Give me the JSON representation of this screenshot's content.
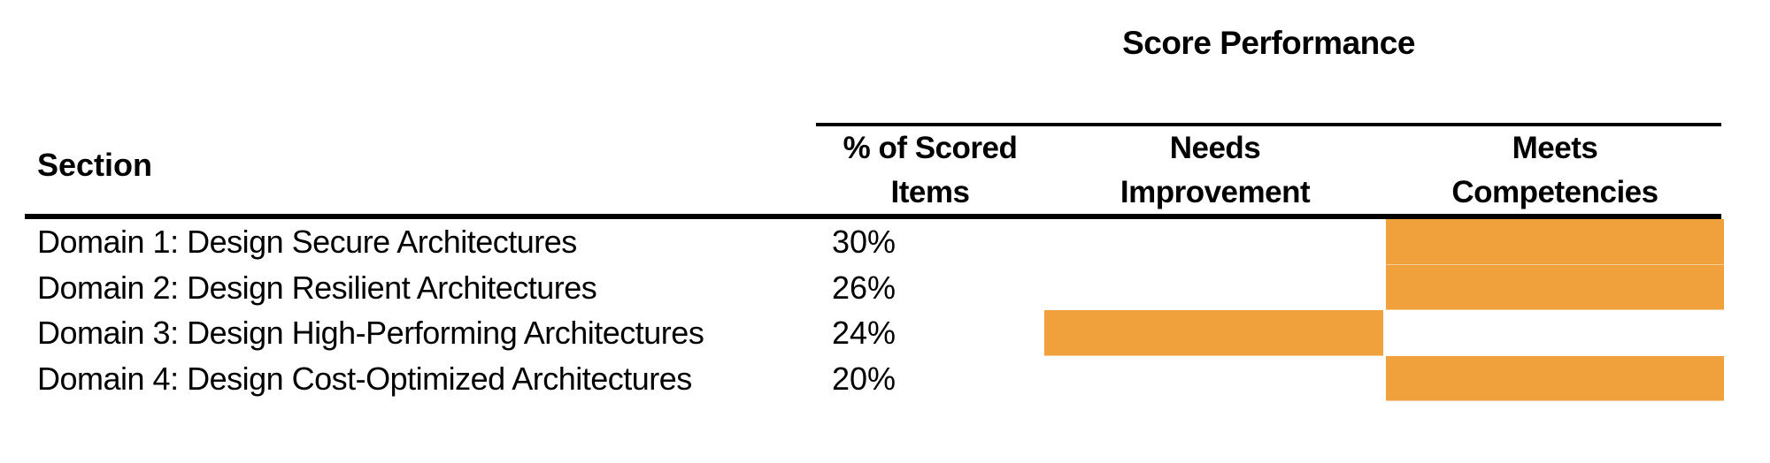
{
  "title": "Score Performance",
  "colors": {
    "bar": "#F1A13C",
    "text": "#000000",
    "rule": "#000000"
  },
  "table": {
    "section_header": "Section",
    "columns": {
      "pct": {
        "line1": "% of Scored",
        "line2": "Items"
      },
      "needs": {
        "line1": "Needs",
        "line2": "Improvement"
      },
      "meets": {
        "line1": "Meets",
        "line2": "Competencies"
      }
    },
    "rows": [
      {
        "section": "Domain 1: Design Secure Architectures",
        "pct": "30%",
        "rating": "meets"
      },
      {
        "section": "Domain 2: Design Resilient Architectures",
        "pct": "26%",
        "rating": "meets"
      },
      {
        "section": "Domain 3: Design High-Performing Architectures",
        "pct": "24%",
        "rating": "needs"
      },
      {
        "section": "Domain 4: Design Cost-Optimized Architectures",
        "pct": "20%",
        "rating": "meets"
      }
    ]
  }
}
